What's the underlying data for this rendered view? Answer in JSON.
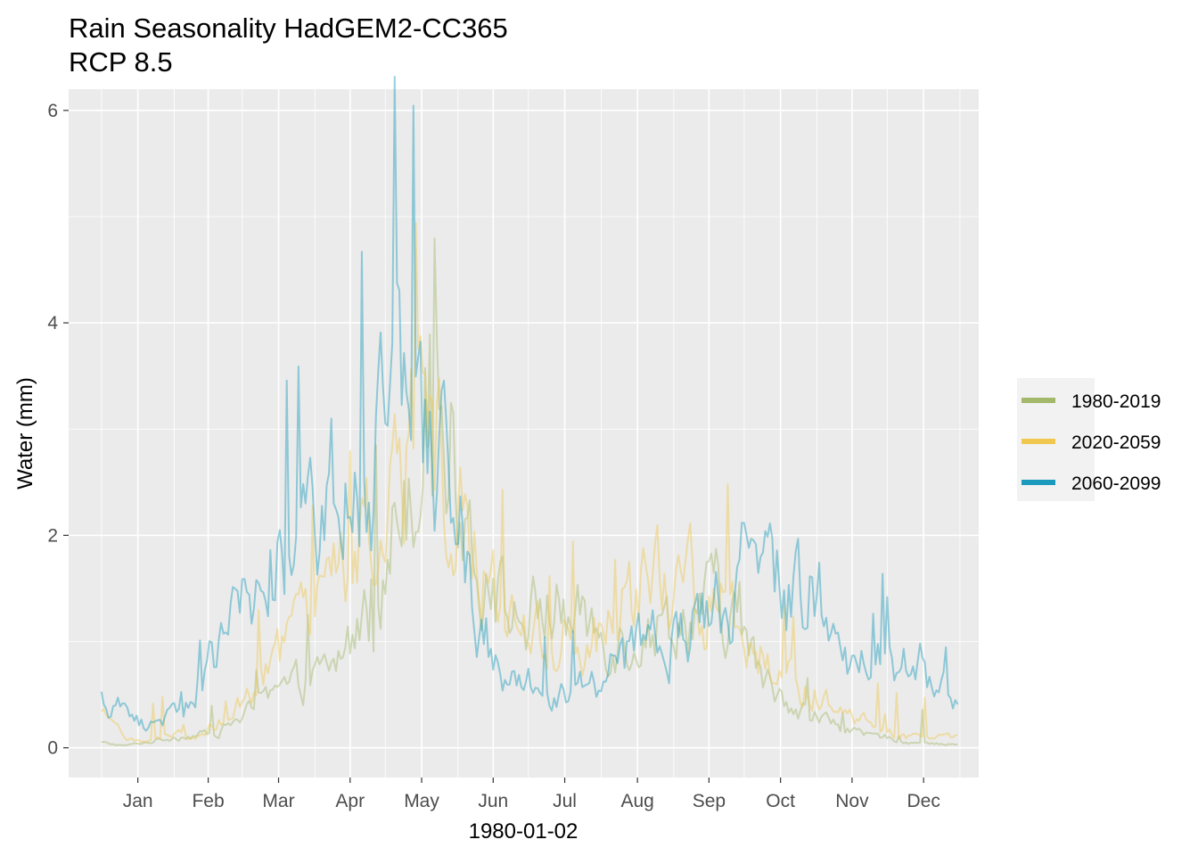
{
  "chart_data": {
    "type": "line",
    "title": "Rain Seasonality HadGEM2-CC365",
    "subtitle": "RCP 8.5",
    "xlabel": "1980-01-02",
    "ylabel": "Water (mm)",
    "x_ticks": [
      "Jan",
      "Feb",
      "Mar",
      "Apr",
      "May",
      "Jun",
      "Jul",
      "Aug",
      "Sep",
      "Oct",
      "Nov",
      "Dec"
    ],
    "y_ticks": [
      "0",
      "2",
      "4",
      "6"
    ],
    "ylim": [
      -0.28,
      6.2
    ],
    "xlim": [
      "1979-12-18",
      "1981-01-09"
    ],
    "grid": true,
    "legend_position": "right",
    "series": [
      {
        "name": "1980-2019",
        "color": "#a3b86a",
        "keypoints": [
          [
            "1980-01-01",
            0.05
          ],
          [
            "1980-01-10",
            0.02
          ],
          [
            "1980-01-20",
            0.05
          ],
          [
            "1980-02-01",
            0.1
          ],
          [
            "1980-02-10",
            0.12
          ],
          [
            "1980-02-20",
            0.15
          ],
          [
            "1980-03-01",
            0.3
          ],
          [
            "1980-03-10",
            0.4
          ],
          [
            "1980-03-20",
            0.55
          ],
          [
            "1980-04-01",
            0.65
          ],
          [
            "1980-04-10",
            0.8
          ],
          [
            "1980-04-20",
            1.15
          ],
          [
            "1980-05-01",
            1.5
          ],
          [
            "1980-05-07",
            2.4
          ],
          [
            "1980-05-15",
            3.0
          ],
          [
            "1980-05-20",
            3.3
          ],
          [
            "1980-05-25",
            3.1
          ],
          [
            "1980-06-01",
            2.7
          ],
          [
            "1980-06-07",
            2.0
          ],
          [
            "1980-06-15",
            1.5
          ],
          [
            "1980-06-25",
            1.2
          ],
          [
            "1980-07-01",
            1.2
          ],
          [
            "1980-07-10",
            1.35
          ],
          [
            "1980-07-20",
            1.2
          ],
          [
            "1980-08-01",
            1.1
          ],
          [
            "1980-08-10",
            1.05
          ],
          [
            "1980-08-20",
            1.1
          ],
          [
            "1980-09-01",
            1.2
          ],
          [
            "1980-09-10",
            1.3
          ],
          [
            "1980-09-20",
            1.35
          ],
          [
            "1980-10-01",
            1.0
          ],
          [
            "1980-10-10",
            0.6
          ],
          [
            "1980-10-20",
            0.45
          ],
          [
            "1980-11-01",
            0.3
          ],
          [
            "1980-11-10",
            0.2
          ],
          [
            "1980-11-20",
            0.12
          ],
          [
            "1980-12-01",
            0.1
          ],
          [
            "1980-12-10",
            0.05
          ],
          [
            "1980-12-20",
            0.04
          ],
          [
            "1980-12-31",
            0.03
          ]
        ]
      },
      {
        "name": "2020-2059",
        "color": "#f0c850",
        "keypoints": [
          [
            "1980-01-01",
            0.3
          ],
          [
            "1980-01-10",
            0.12
          ],
          [
            "1980-01-20",
            0.05
          ],
          [
            "1980-02-01",
            0.15
          ],
          [
            "1980-02-10",
            0.1
          ],
          [
            "1980-02-20",
            0.25
          ],
          [
            "1980-03-01",
            0.4
          ],
          [
            "1980-03-10",
            0.7
          ],
          [
            "1980-03-20",
            0.95
          ],
          [
            "1980-04-01",
            1.2
          ],
          [
            "1980-04-10",
            1.6
          ],
          [
            "1980-04-20",
            1.85
          ],
          [
            "1980-05-01",
            2.0
          ],
          [
            "1980-05-07",
            2.6
          ],
          [
            "1980-05-15",
            2.9
          ],
          [
            "1980-05-20",
            3.0
          ],
          [
            "1980-05-25",
            2.95
          ],
          [
            "1980-06-01",
            2.4
          ],
          [
            "1980-06-07",
            1.9
          ],
          [
            "1980-06-15",
            1.5
          ],
          [
            "1980-06-25",
            1.1
          ],
          [
            "1980-07-01",
            1.0
          ],
          [
            "1980-07-10",
            1.0
          ],
          [
            "1980-07-20",
            1.05
          ],
          [
            "1980-08-01",
            1.0
          ],
          [
            "1980-08-10",
            1.25
          ],
          [
            "1980-08-20",
            1.5
          ],
          [
            "1980-09-01",
            1.6
          ],
          [
            "1980-09-10",
            1.5
          ],
          [
            "1980-09-20",
            1.35
          ],
          [
            "1980-10-01",
            1.2
          ],
          [
            "1980-10-10",
            0.9
          ],
          [
            "1980-10-20",
            0.7
          ],
          [
            "1980-11-01",
            0.5
          ],
          [
            "1980-11-10",
            0.35
          ],
          [
            "1980-11-20",
            0.25
          ],
          [
            "1980-12-01",
            0.15
          ],
          [
            "1980-12-10",
            0.1
          ],
          [
            "1980-12-20",
            0.1
          ],
          [
            "1980-12-31",
            0.1
          ]
        ]
      },
      {
        "name": "2060-2099",
        "color": "#1a9bbd",
        "keypoints": [
          [
            "1980-01-01",
            0.45
          ],
          [
            "1980-01-10",
            0.35
          ],
          [
            "1980-01-20",
            0.2
          ],
          [
            "1980-02-01",
            0.35
          ],
          [
            "1980-02-10",
            0.55
          ],
          [
            "1980-02-20",
            0.9
          ],
          [
            "1980-03-01",
            1.25
          ],
          [
            "1980-03-10",
            1.6
          ],
          [
            "1980-03-20",
            1.9
          ],
          [
            "1980-04-01",
            2.0
          ],
          [
            "1980-04-10",
            2.1
          ],
          [
            "1980-04-20",
            2.3
          ],
          [
            "1980-05-01",
            2.9
          ],
          [
            "1980-05-07",
            3.2
          ],
          [
            "1980-05-15",
            3.0
          ],
          [
            "1980-05-20",
            2.7
          ],
          [
            "1980-05-25",
            2.6
          ],
          [
            "1980-06-01",
            2.2
          ],
          [
            "1980-06-07",
            1.5
          ],
          [
            "1980-06-15",
            0.9
          ],
          [
            "1980-06-25",
            0.7
          ],
          [
            "1980-07-01",
            0.6
          ],
          [
            "1980-07-10",
            0.5
          ],
          [
            "1980-07-20",
            0.6
          ],
          [
            "1980-08-01",
            0.65
          ],
          [
            "1980-08-10",
            0.8
          ],
          [
            "1980-08-20",
            1.0
          ],
          [
            "1980-09-01",
            1.05
          ],
          [
            "1980-09-10",
            1.1
          ],
          [
            "1980-09-20",
            1.3
          ],
          [
            "1980-10-01",
            1.7
          ],
          [
            "1980-10-10",
            2.2
          ],
          [
            "1980-10-20",
            1.5
          ],
          [
            "1980-11-01",
            1.5
          ],
          [
            "1980-11-10",
            0.9
          ],
          [
            "1980-11-20",
            0.8
          ],
          [
            "1980-12-01",
            0.9
          ],
          [
            "1980-12-10",
            0.75
          ],
          [
            "1980-12-20",
            0.6
          ],
          [
            "1980-12-31",
            0.5
          ]
        ]
      }
    ]
  }
}
